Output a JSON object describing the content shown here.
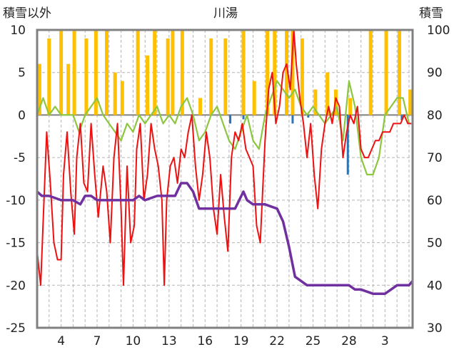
{
  "chart_data": {
    "type": "line",
    "title": "川湯",
    "ylabel_left": "積雪以外",
    "ylabel_right": "積雪",
    "y_left": {
      "min": -25,
      "max": 10,
      "ticks": [
        10,
        5,
        0,
        -5,
        -10,
        -15,
        -20,
        -25
      ]
    },
    "y_right": {
      "min": 30,
      "max": 100,
      "ticks": [
        100,
        90,
        80,
        70,
        60,
        50,
        40,
        30
      ]
    },
    "x_day_range": [
      2,
      33.3
    ],
    "x_ticks": [
      {
        "day": 4,
        "label": "4"
      },
      {
        "day": 7,
        "label": "7"
      },
      {
        "day": 10,
        "label": "10"
      },
      {
        "day": 13,
        "label": "13"
      },
      {
        "day": 16,
        "label": "16"
      },
      {
        "day": 19,
        "label": "19"
      },
      {
        "day": 22,
        "label": "22"
      },
      {
        "day": 25,
        "label": "25"
      },
      {
        "day": 28,
        "label": "28"
      },
      {
        "day": 31,
        "label": "3"
      }
    ],
    "grid": true,
    "colors": {
      "temperature": "#ee1111",
      "dewpoint": "#8dc63f",
      "precip_bar": "#ffc000",
      "precip_neg": "#2e75b6",
      "snow_depth": "#7030a0",
      "frame": "#808080"
    },
    "series": [
      {
        "key": "temperature",
        "axis": "left",
        "points": [
          [
            2,
            -16
          ],
          [
            2.3,
            -20
          ],
          [
            2.6,
            -9
          ],
          [
            2.8,
            -2
          ],
          [
            3.1,
            -8
          ],
          [
            3.4,
            -15
          ],
          [
            3.7,
            -17
          ],
          [
            4,
            -17
          ],
          [
            4.2,
            -7
          ],
          [
            4.5,
            -2
          ],
          [
            4.8,
            -9
          ],
          [
            5.1,
            -14
          ],
          [
            5.3,
            -5
          ],
          [
            5.6,
            -1
          ],
          [
            5.9,
            -8
          ],
          [
            6.2,
            -9
          ],
          [
            6.5,
            -1
          ],
          [
            6.8,
            -7
          ],
          [
            7.1,
            -12
          ],
          [
            7.5,
            -6
          ],
          [
            7.8,
            -9
          ],
          [
            8.1,
            -15
          ],
          [
            8.4,
            -5
          ],
          [
            8.7,
            -1
          ],
          [
            9,
            -11
          ],
          [
            9.2,
            -20
          ],
          [
            9.5,
            -6
          ],
          [
            9.8,
            -15
          ],
          [
            10.1,
            -13
          ],
          [
            10.3,
            -4
          ],
          [
            10.6,
            -1
          ],
          [
            10.9,
            -10
          ],
          [
            11.2,
            -7
          ],
          [
            11.5,
            -1
          ],
          [
            11.8,
            -4
          ],
          [
            12.1,
            -6
          ],
          [
            12.4,
            -10
          ],
          [
            12.6,
            -20
          ],
          [
            12.8,
            -10
          ],
          [
            13.1,
            -6
          ],
          [
            13.4,
            -5
          ],
          [
            13.7,
            -8
          ],
          [
            14,
            -4
          ],
          [
            14.3,
            -5
          ],
          [
            14.6,
            -2
          ],
          [
            14.9,
            0
          ],
          [
            15.2,
            -6
          ],
          [
            15.5,
            -10
          ],
          [
            15.8,
            -7
          ],
          [
            16.1,
            -2
          ],
          [
            16.4,
            -5
          ],
          [
            16.7,
            -11
          ],
          [
            17,
            -14
          ],
          [
            17.3,
            -7
          ],
          [
            17.6,
            -12
          ],
          [
            17.9,
            -16
          ],
          [
            18.2,
            -5
          ],
          [
            18.5,
            -2
          ],
          [
            18.8,
            -3
          ],
          [
            19.1,
            -1
          ],
          [
            19.4,
            -4
          ],
          [
            19.7,
            -5
          ],
          [
            20,
            -6
          ],
          [
            20.3,
            -13
          ],
          [
            20.6,
            -15
          ],
          [
            20.8,
            -9
          ],
          [
            21,
            -3
          ],
          [
            21.3,
            3
          ],
          [
            21.6,
            5
          ],
          [
            21.9,
            -1
          ],
          [
            22.2,
            1
          ],
          [
            22.5,
            5
          ],
          [
            22.8,
            6
          ],
          [
            23.1,
            3
          ],
          [
            23.4,
            10
          ],
          [
            23.6,
            6
          ],
          [
            23.9,
            2
          ],
          [
            24.2,
            -1
          ],
          [
            24.5,
            -5
          ],
          [
            24.8,
            -1
          ],
          [
            25.1,
            -7
          ],
          [
            25.4,
            -11
          ],
          [
            25.7,
            -4
          ],
          [
            26,
            -1
          ],
          [
            26.3,
            1
          ],
          [
            26.6,
            -1
          ],
          [
            26.9,
            2
          ],
          [
            27.2,
            1
          ],
          [
            27.5,
            -5
          ],
          [
            27.8,
            -2
          ],
          [
            28.1,
            0
          ],
          [
            28.4,
            -1
          ],
          [
            28.7,
            1
          ],
          [
            29,
            -4
          ],
          [
            29.3,
            -5
          ],
          [
            29.6,
            -5
          ],
          [
            29.9,
            -4
          ],
          [
            30.2,
            -3
          ],
          [
            30.5,
            -3
          ],
          [
            30.8,
            -2
          ],
          [
            31.1,
            -2
          ],
          [
            31.4,
            -2
          ],
          [
            31.7,
            -1
          ],
          [
            32,
            -1
          ],
          [
            32.3,
            -1
          ],
          [
            32.6,
            0
          ],
          [
            32.9,
            -1
          ],
          [
            33.2,
            -1
          ]
        ]
      },
      {
        "key": "dewpoint",
        "axis": "left",
        "points": [
          [
            2,
            0
          ],
          [
            2.5,
            2
          ],
          [
            3,
            0
          ],
          [
            3.5,
            1
          ],
          [
            4,
            0
          ],
          [
            4.5,
            0
          ],
          [
            5,
            0
          ],
          [
            5.5,
            -2
          ],
          [
            6,
            0
          ],
          [
            6.5,
            1
          ],
          [
            7,
            2
          ],
          [
            7.5,
            0
          ],
          [
            8,
            -1
          ],
          [
            8.5,
            -2
          ],
          [
            9,
            -3
          ],
          [
            9.5,
            -1
          ],
          [
            10,
            -2
          ],
          [
            10.5,
            0
          ],
          [
            11,
            -1
          ],
          [
            11.5,
            0
          ],
          [
            12,
            1
          ],
          [
            12.5,
            -1
          ],
          [
            13,
            0
          ],
          [
            13.5,
            -1
          ],
          [
            14,
            1
          ],
          [
            14.5,
            2
          ],
          [
            15,
            0
          ],
          [
            15.5,
            -3
          ],
          [
            16,
            -2
          ],
          [
            16.5,
            0
          ],
          [
            17,
            1
          ],
          [
            17.5,
            -1
          ],
          [
            18,
            -3
          ],
          [
            18.5,
            -4
          ],
          [
            19,
            -2
          ],
          [
            19.5,
            0
          ],
          [
            20,
            -3
          ],
          [
            20.5,
            -4
          ],
          [
            21,
            0
          ],
          [
            21.5,
            2
          ],
          [
            22,
            4
          ],
          [
            22.5,
            3
          ],
          [
            23,
            2
          ],
          [
            23.5,
            3
          ],
          [
            24,
            1
          ],
          [
            24.5,
            0
          ],
          [
            25,
            1
          ],
          [
            25.5,
            0
          ],
          [
            26,
            -1
          ],
          [
            26.5,
            0
          ],
          [
            27,
            1
          ],
          [
            27.5,
            -3
          ],
          [
            28,
            4
          ],
          [
            28.5,
            1
          ],
          [
            29,
            -5
          ],
          [
            29.5,
            -7
          ],
          [
            30,
            -7
          ],
          [
            30.5,
            -5
          ],
          [
            31,
            0
          ],
          [
            31.5,
            1
          ],
          [
            32,
            2
          ],
          [
            32.5,
            2
          ],
          [
            33,
            -1
          ]
        ]
      },
      {
        "key": "snow_depth",
        "axis": "right",
        "points": [
          [
            2,
            62
          ],
          [
            2.4,
            61
          ],
          [
            3,
            61
          ],
          [
            4,
            60
          ],
          [
            5,
            60
          ],
          [
            5.6,
            59
          ],
          [
            6,
            61
          ],
          [
            6.5,
            61
          ],
          [
            7,
            60
          ],
          [
            8,
            60
          ],
          [
            9,
            60
          ],
          [
            10,
            60
          ],
          [
            10.5,
            61
          ],
          [
            11,
            60
          ],
          [
            12,
            61
          ],
          [
            13,
            61
          ],
          [
            13.5,
            61
          ],
          [
            14,
            64
          ],
          [
            14.5,
            64
          ],
          [
            15,
            62
          ],
          [
            15.5,
            58
          ],
          [
            16,
            58
          ],
          [
            17,
            58
          ],
          [
            18,
            58
          ],
          [
            18.5,
            58
          ],
          [
            19.2,
            62
          ],
          [
            19.5,
            60
          ],
          [
            20,
            59
          ],
          [
            21,
            59
          ],
          [
            22,
            58
          ],
          [
            22.5,
            55
          ],
          [
            23,
            49
          ],
          [
            23.5,
            42
          ],
          [
            24,
            41
          ],
          [
            24.5,
            40
          ],
          [
            25,
            40
          ],
          [
            26,
            40
          ],
          [
            27,
            40
          ],
          [
            28,
            40
          ],
          [
            28.5,
            39
          ],
          [
            29,
            39
          ],
          [
            30,
            38
          ],
          [
            31,
            38
          ],
          [
            31.5,
            39
          ],
          [
            32,
            40
          ],
          [
            32.5,
            40
          ],
          [
            33,
            40
          ],
          [
            33.3,
            41
          ]
        ]
      },
      {
        "key": "precip_bar",
        "axis": "left",
        "bars": [
          [
            2.2,
            6
          ],
          [
            3,
            9
          ],
          [
            4,
            10
          ],
          [
            4.6,
            6
          ],
          [
            5.1,
            10
          ],
          [
            6.1,
            9
          ],
          [
            6.9,
            10
          ],
          [
            7.8,
            10
          ],
          [
            8.5,
            5
          ],
          [
            9.1,
            4
          ],
          [
            10.4,
            10
          ],
          [
            11.2,
            7
          ],
          [
            11.8,
            10
          ],
          [
            12.9,
            9
          ],
          [
            13.3,
            10
          ],
          [
            14.1,
            10
          ],
          [
            15.6,
            2
          ],
          [
            16.5,
            9
          ],
          [
            17.7,
            9
          ],
          [
            19.2,
            10
          ],
          [
            20.1,
            4
          ],
          [
            21.2,
            10
          ],
          [
            21.8,
            10
          ],
          [
            22.8,
            10
          ],
          [
            23.3,
            10
          ],
          [
            24.1,
            9
          ],
          [
            25.2,
            3
          ],
          [
            26.2,
            5
          ],
          [
            26.9,
            3
          ],
          [
            28.1,
            2
          ],
          [
            29.8,
            10
          ],
          [
            31.1,
            10
          ],
          [
            32.2,
            10
          ],
          [
            33.1,
            3
          ]
        ]
      },
      {
        "key": "precip_neg",
        "axis": "left",
        "bars": [
          [
            18.1,
            -1
          ],
          [
            19.2,
            -0.5
          ],
          [
            23.3,
            -1
          ],
          [
            24.6,
            -0.3
          ],
          [
            27.9,
            -7
          ],
          [
            32.4,
            -0.6
          ]
        ]
      }
    ]
  }
}
